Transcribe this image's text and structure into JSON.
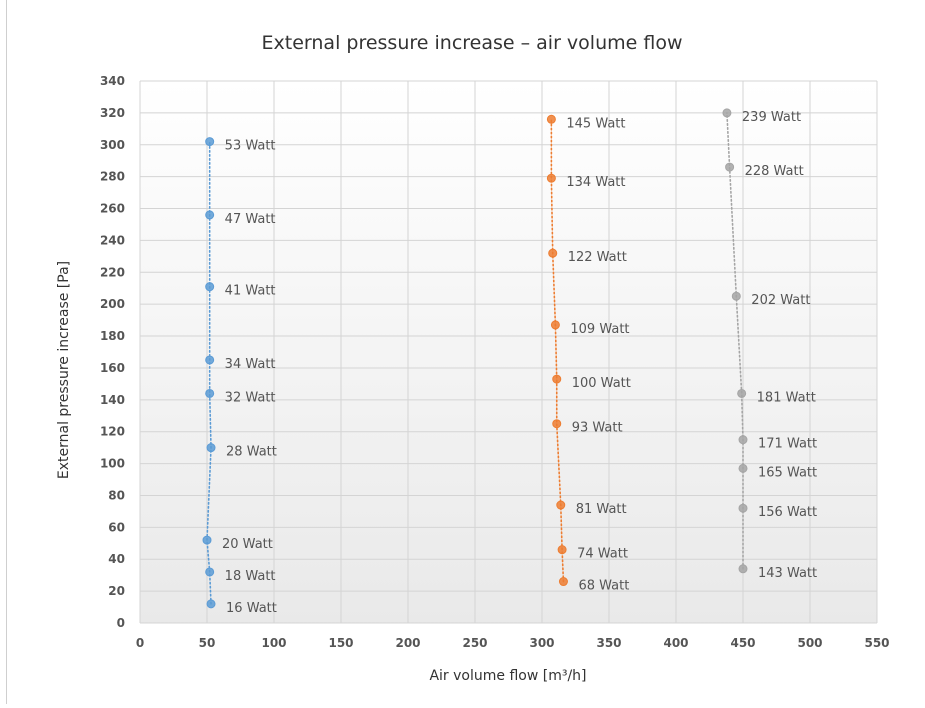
{
  "chart_data": {
    "type": "scatter",
    "title": "External pressure increase – air volume flow",
    "xlabel": "Air volume flow [m³/h]",
    "ylabel": "External pressure increase [Pa]",
    "xlim": [
      0,
      550
    ],
    "ylim": [
      0,
      340
    ],
    "x_ticks": [
      0,
      50,
      100,
      150,
      200,
      250,
      300,
      350,
      400,
      450,
      500,
      550
    ],
    "y_ticks": [
      0,
      20,
      40,
      60,
      80,
      100,
      120,
      140,
      160,
      180,
      200,
      220,
      240,
      260,
      280,
      300,
      320,
      340
    ],
    "grid": true,
    "legend": "none",
    "series": [
      {
        "color": "#5b9bd5",
        "points": [
          {
            "x": 53,
            "y": 12,
            "label": "16 Watt"
          },
          {
            "x": 52,
            "y": 32,
            "label": "18 Watt"
          },
          {
            "x": 50,
            "y": 52,
            "label": "20 Watt"
          },
          {
            "x": 53,
            "y": 110,
            "label": "28 Watt"
          },
          {
            "x": 52,
            "y": 144,
            "label": "32 Watt"
          },
          {
            "x": 52,
            "y": 165,
            "label": "34 Watt"
          },
          {
            "x": 52,
            "y": 211,
            "label": "41 Watt"
          },
          {
            "x": 52,
            "y": 256,
            "label": "47 Watt"
          },
          {
            "x": 52,
            "y": 302,
            "label": "53 Watt"
          }
        ]
      },
      {
        "color": "#ed7d31",
        "points": [
          {
            "x": 316,
            "y": 26,
            "label": "68 Watt"
          },
          {
            "x": 315,
            "y": 46,
            "label": "74 Watt"
          },
          {
            "x": 314,
            "y": 74,
            "label": "81 Watt"
          },
          {
            "x": 311,
            "y": 125,
            "label": "93 Watt"
          },
          {
            "x": 311,
            "y": 153,
            "label": "100 Watt"
          },
          {
            "x": 310,
            "y": 187,
            "label": "109 Watt"
          },
          {
            "x": 308,
            "y": 232,
            "label": "122 Watt"
          },
          {
            "x": 307,
            "y": 279,
            "label": "134 Watt"
          },
          {
            "x": 307,
            "y": 316,
            "label": "145 Watt"
          }
        ]
      },
      {
        "color": "#a5a5a5",
        "points": [
          {
            "x": 450,
            "y": 34,
            "label": "143 Watt"
          },
          {
            "x": 450,
            "y": 72,
            "label": "156 Watt"
          },
          {
            "x": 450,
            "y": 97,
            "label": "165 Watt"
          },
          {
            "x": 450,
            "y": 115,
            "label": "171 Watt"
          },
          {
            "x": 449,
            "y": 144,
            "label": "181 Watt"
          },
          {
            "x": 445,
            "y": 205,
            "label": "202 Watt"
          },
          {
            "x": 440,
            "y": 286,
            "label": "228 Watt"
          },
          {
            "x": 438,
            "y": 320,
            "label": "239 Watt"
          }
        ]
      }
    ]
  }
}
